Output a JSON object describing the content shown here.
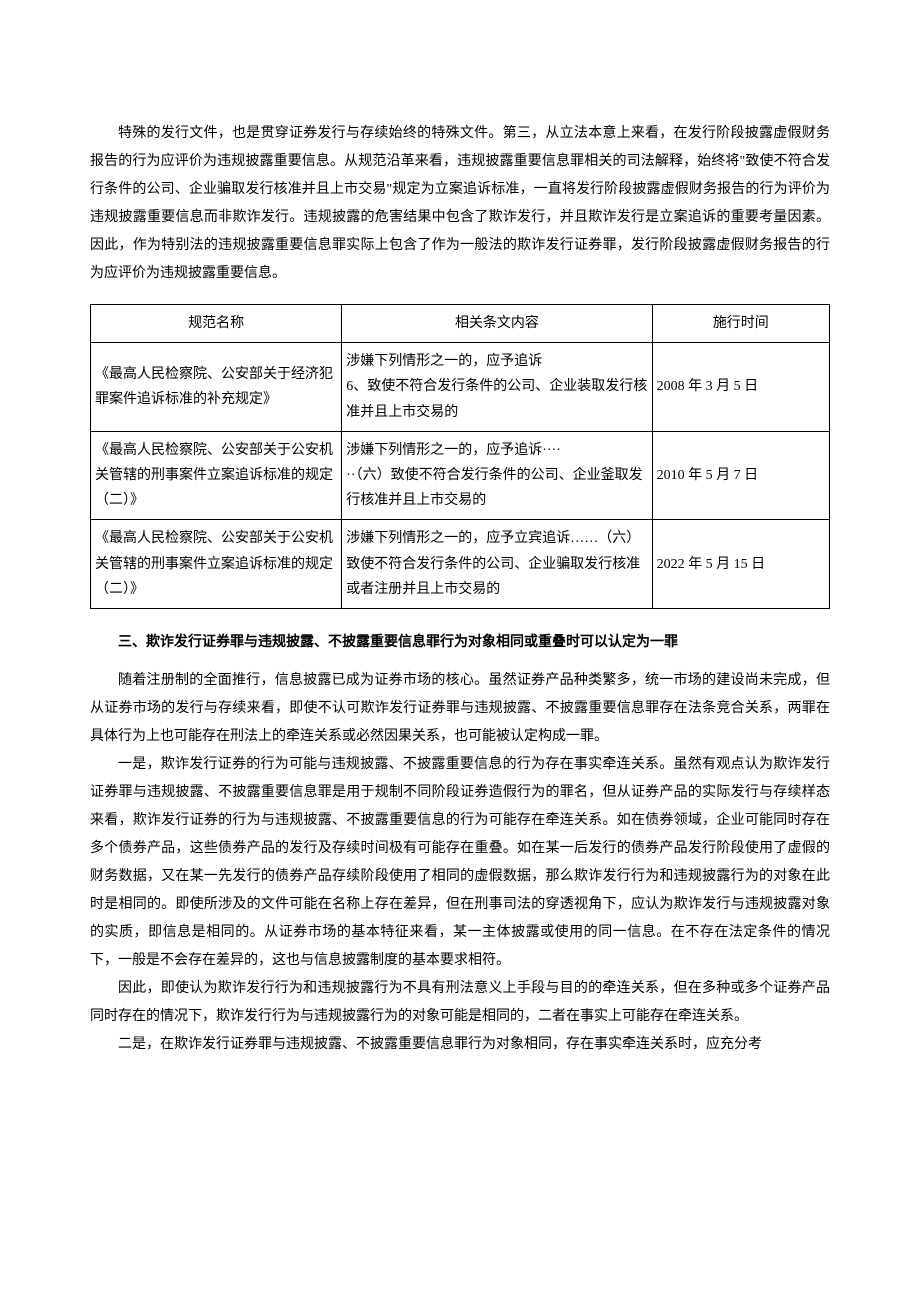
{
  "para1": "特殊的发行文件，也是贯穿证券发行与存续始终的特殊文件。第三，从立法本意上来看，在发行阶段披露虚假财务报告的行为应评价为违规披露重要信息。从规范沿革来看，违规披露重要信息罪相关的司法解释，始终将\"致使不符合发行条件的公司、企业骗取发行核准并且上市交易\"规定为立案追诉标准，一直将发行阶段披露虚假财务报告的行为评价为违规披露重要信息而非欺诈发行。违规披露的危害结果中包含了欺诈发行，并且欺诈发行是立案追诉的重要考量因素。因此，作为特别法的违规披露重要信息罪实际上包含了作为一般法的欺诈发行证券罪，发行阶段披露虚假财务报告的行为应评价为违规披露重要信息。",
  "table": {
    "columns": [
      "规范名称",
      "相关条文内容",
      "施行时间"
    ],
    "rows": [
      {
        "name": "《最高人民检察院、公安部关于经济犯罪案件追诉标准的补充规定》",
        "content": "涉嫌下列情形之一的，应予追诉\n6、致使不符合发行条件的公司、企业装取发行核准并且上市交易的",
        "date": "2008 年 3 月 5 日"
      },
      {
        "name": "《最高人民检察院、公安部关于公安机关管辖的刑事案件立案追诉标准的规定（二）》",
        "content": "涉嫌下列情形之一的，应予追诉····\n··（六）致使不符合发行条件的公司、企业釜取发行核准并且上市交易的",
        "date": "2010 年 5 月 7 日"
      },
      {
        "name": "《最高人民检察院、公安部关于公安机关管辖的刑事案件立案追诉标准的规定（二）》",
        "content": "涉嫌下列情形之一的，应予立宾追诉……（六）致使不符合发行条件的公司、企业骗取发行核准或者注册并且上市交易的",
        "date": "2022 年 5 月 15 日"
      }
    ]
  },
  "heading": "三、欺诈发行证券罪与违规披露、不披露重要信息罪行为对象相同或重叠时可以认定为一罪",
  "para2": "随着注册制的全面推行，信息披露已成为证券市场的核心。虽然证券产品种类繁多，统一市场的建设尚未完成，但从证券市场的发行与存续来看，即使不认可欺诈发行证券罪与违规披露、不披露重要信息罪存在法条竞合关系，两罪在具体行为上也可能存在刑法上的牵连关系或必然因果关系，也可能被认定构成一罪。",
  "para3": "一是，欺诈发行证券的行为可能与违规披露、不披露重要信息的行为存在事实牵连关系。虽然有观点认为欺诈发行证券罪与违规披露、不披露重要信息罪是用于规制不同阶段证券造假行为的罪名，但从证券产品的实际发行与存续样态来看，欺诈发行证券的行为与违规披露、不披露重要信息的行为可能存在牵连关系。如在债券领域，企业可能同时存在多个债券产品，这些债券产品的发行及存续时间极有可能存在重叠。如在某一后发行的债券产品发行阶段使用了虚假的财务数据，又在某一先发行的债券产品存续阶段使用了相同的虚假数据，那么欺诈发行行为和违规披露行为的对象在此时是相同的。即使所涉及的文件可能在名称上存在差异，但在刑事司法的穿透视角下，应认为欺诈发行与违规披露对象的实质，即信息是相同的。从证券市场的基本特征来看，某一主体披露或使用的同一信息。在不存在法定条件的情况下，一般是不会存在差异的，这也与信息披露制度的基本要求相符。",
  "para4": "因此，即使认为欺诈发行行为和违规披露行为不具有刑法意义上手段与目的的牵连关系，但在多种或多个证券产品同时存在的情况下，欺诈发行行为与违规披露行为的对象可能是相同的，二者在事实上可能存在牵连关系。",
  "para5": "二是，在欺诈发行证券罪与违规披露、不披露重要信息罪行为对象相同，存在事实牵连关系时，应充分考"
}
